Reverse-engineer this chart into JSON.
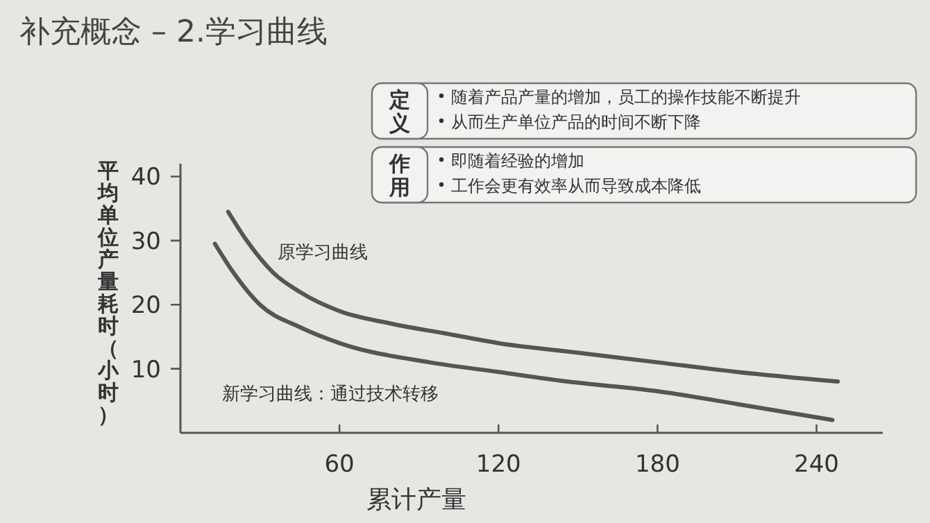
{
  "chart_data": {
    "type": "line",
    "title": "补充概念 – 2.学习曲线",
    "xlabel": "累计产量",
    "ylabel": "平均单位产量耗时（小时）",
    "annotations": [
      "定义",
      "随着产品产量的增加，员工的操作技能不断提升",
      "从而生产单位产品的时间不断下降",
      "作用",
      "即随着经验的增加",
      "工作会更有效率从而导致成本降低"
    ],
    "series": [
      {
        "name": "原学习曲线",
        "color": "#555555",
        "x": [
          18,
          25,
          35,
          45,
          60,
          80,
          100,
          120,
          150,
          180,
          210,
          248
        ],
        "values": [
          34.5,
          30,
          25,
          22,
          19,
          17,
          15.5,
          14,
          12.5,
          11,
          9.5,
          8
        ]
      },
      {
        "name": "新学习曲线：通过技术转移",
        "color": "#555555",
        "x": [
          13,
          20,
          30,
          45,
          60,
          94,
          120,
          146,
          180,
          210,
          246
        ],
        "values": [
          29.5,
          25,
          20,
          16.5,
          14,
          11,
          9.5,
          8,
          6.5,
          4.5,
          2
        ]
      }
    ],
    "xlim": [
      0,
      265
    ],
    "ylim": [
      0,
      42
    ],
    "xticks": [
      60,
      120,
      180,
      240
    ],
    "yticks": [
      10,
      20,
      30,
      40
    ],
    "grid": false,
    "legend": false,
    "marker": "none",
    "line_style": "solid"
  }
}
